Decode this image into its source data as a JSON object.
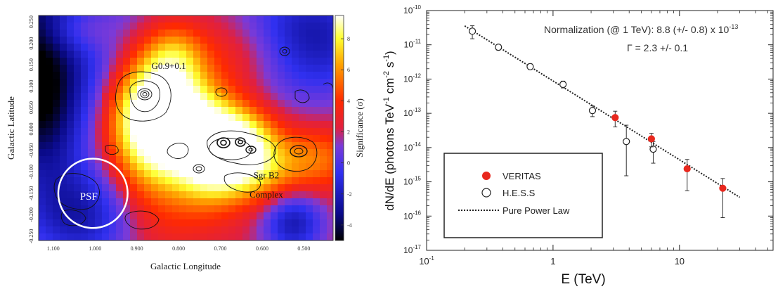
{
  "chart_data": [
    {
      "type": "heatmap",
      "xlabel": "Galactic Longitude",
      "ylabel": "Galactic Latitude",
      "colorbar_label": "Significance (σ)",
      "x_ticks": [
        "1.100",
        "1.000",
        "0.900",
        "0.800",
        "0.700",
        "0.600",
        "0.500"
      ],
      "y_ticks": [
        "0.250",
        "0.200",
        "0.150",
        "0.100",
        "0.050",
        "0.000",
        "-0.050",
        "-0.100",
        "-0.150",
        "-0.200",
        "-0.250"
      ],
      "colorbar_ticks": [
        "8",
        "6",
        "4",
        "2",
        "0",
        "-2",
        "-4"
      ],
      "colorbar_range": [
        -5,
        9.5
      ],
      "annotations": [
        {
          "text": "G0.9+0.1",
          "l": 0.865,
          "b": 0.14
        },
        {
          "text": "Sgr B2",
          "l": 0.59,
          "b": -0.115
        },
        {
          "text": "Complex",
          "l": 0.59,
          "b": -0.16
        },
        {
          "text": "PSF",
          "l": 1.015,
          "b": -0.165
        }
      ],
      "psf_circle": {
        "l": 1.005,
        "b": -0.15,
        "radius_deg": 0.083
      },
      "blobs": [
        {
          "l": 1.19,
          "b": 0.2,
          "sig": -6,
          "wl": 0.16,
          "wb": 0.2
        },
        {
          "l": 1.12,
          "b": 0.04,
          "sig": -3,
          "wl": 0.06,
          "wb": 0.12
        },
        {
          "l": 1.03,
          "b": -0.2,
          "sig": -4,
          "wl": 0.09,
          "wb": 0.08
        },
        {
          "l": 0.495,
          "b": 0.205,
          "sig": -5,
          "wl": 0.11,
          "wb": 0.09
        },
        {
          "l": 0.525,
          "b": -0.22,
          "sig": -4,
          "wl": 0.05,
          "wb": 0.05
        },
        {
          "l": 0.85,
          "b": 0.04,
          "sig": 9,
          "wl": 0.07,
          "wb": 0.09
        },
        {
          "l": 0.77,
          "b": 0.02,
          "sig": 4,
          "wl": 0.09,
          "wb": 0.07
        },
        {
          "l": 0.72,
          "b": -0.07,
          "sig": 6,
          "wl": 0.06,
          "wb": 0.07
        },
        {
          "l": 0.65,
          "b": -0.03,
          "sig": 5.5,
          "wl": 0.06,
          "wb": 0.05
        },
        {
          "l": 0.62,
          "b": -0.1,
          "sig": 4,
          "wl": 0.07,
          "wb": 0.05
        },
        {
          "l": 0.85,
          "b": -0.08,
          "sig": 3,
          "wl": 0.1,
          "wb": 0.12
        },
        {
          "l": 0.81,
          "b": 0.17,
          "sig": 3,
          "wl": 0.05,
          "wb": 0.05
        },
        {
          "l": 0.61,
          "b": 0.18,
          "sig": 2,
          "wl": 0.11,
          "wb": 0.06
        },
        {
          "l": 0.47,
          "b": -0.07,
          "sig": 3,
          "wl": 0.07,
          "wb": 0.05
        },
        {
          "l": 1.04,
          "b": 0.23,
          "sig": 2,
          "wl": 0.06,
          "wb": 0.04
        }
      ],
      "background_significance": 1.8
    },
    {
      "type": "scatter",
      "xlabel": "E (TeV)",
      "ylabel": "dN/dE (photons TeV",
      "ylabel_exp1": "-1",
      "ylabel_mid": " cm",
      "ylabel_exp2": "-2",
      "ylabel_end": " s",
      "ylabel_exp3": "-1",
      "ylabel_close": ")",
      "x_scale": "log",
      "y_scale": "log",
      "xlim": [
        0.1,
        55
      ],
      "ylim": [
        1e-17,
        1e-10
      ],
      "x_ticks": [
        {
          "value": 0.1,
          "base": "10",
          "exp": "-1"
        },
        {
          "value": 1,
          "label": "1"
        },
        {
          "value": 10,
          "label": "10"
        }
      ],
      "y_ticks": [
        {
          "value": 1e-10,
          "base": "10",
          "exp": "-10"
        },
        {
          "value": 1e-11,
          "base": "10",
          "exp": "-11"
        },
        {
          "value": 1e-12,
          "base": "10",
          "exp": "-12"
        },
        {
          "value": 1e-13,
          "base": "10",
          "exp": "-13"
        },
        {
          "value": 1e-14,
          "base": "10",
          "exp": "-14"
        },
        {
          "value": 1e-15,
          "base": "10",
          "exp": "-15"
        },
        {
          "value": 1e-16,
          "base": "10",
          "exp": "-16"
        },
        {
          "value": 1e-17,
          "base": "10",
          "exp": "-17"
        }
      ],
      "annotation_norm": "Normalization (@ 1 TeV): 8.8 (+/- 0.8) x 10",
      "annotation_norm_exp": "-13",
      "annotation_gamma": "Γ = 2.3 +/- 0.1",
      "legend_placement": "bottom-left",
      "series": [
        {
          "name": "VERITAS",
          "marker": "filled-circle",
          "color": "#e8281e",
          "points": [
            {
              "x": 3.1,
              "y": 7.5e-14,
              "ylo": 4e-14,
              "yhi": 1.15e-13
            },
            {
              "x": 6.0,
              "y": 1.8e-14,
              "ylo": 1.05e-14,
              "yhi": 2.6e-14
            },
            {
              "x": 11.5,
              "y": 2.4e-15,
              "ylo": 5.5e-16,
              "yhi": 4.5e-15
            },
            {
              "x": 22.0,
              "y": 6.5e-16,
              "ylo": 9e-17,
              "yhi": 1.25e-15
            }
          ]
        },
        {
          "name": "H.E.S.S",
          "marker": "open-circle",
          "color": "#222222",
          "points": [
            {
              "x": 0.23,
              "y": 2.5e-11,
              "ylo": 1.5e-11,
              "yhi": 3.6e-11
            },
            {
              "x": 0.37,
              "y": 8.5e-12,
              "ylo": 7e-12,
              "yhi": 1e-11
            },
            {
              "x": 0.66,
              "y": 2.3e-12,
              "ylo": 1.9e-12,
              "yhi": 2.8e-12
            },
            {
              "x": 1.2,
              "y": 7e-13,
              "ylo": 5.5e-13,
              "yhi": 8.7e-13
            },
            {
              "x": 2.05,
              "y": 1.2e-13,
              "ylo": 8e-14,
              "yhi": 1.65e-13
            },
            {
              "x": 3.8,
              "y": 1.5e-14,
              "ylo": 1.5e-15,
              "yhi": 4.5e-14
            },
            {
              "x": 6.2,
              "y": 9e-15,
              "ylo": 3.5e-15,
              "yhi": 1.5e-14
            }
          ]
        },
        {
          "name": "Pure Power Law",
          "style": "dotted-line",
          "color": "#222222",
          "norm_at_1TeV": 8.8e-13,
          "index": 2.3,
          "x_range": [
            0.2,
            30
          ]
        }
      ]
    }
  ]
}
